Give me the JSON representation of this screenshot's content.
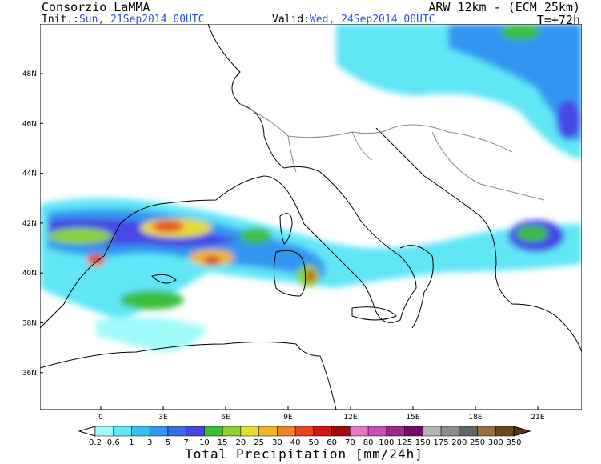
{
  "header": {
    "title": "Consorzio LaMMA",
    "model": "ARW 12km - (ECM 25km)",
    "init_label": "Init.:",
    "init": "Sun, 21Sep2014 00UTC",
    "valid_label": "Valid:",
    "valid": "Wed, 24Sep2014 00UTC",
    "lead": "T=+72h"
  },
  "map": {
    "lat_labels": [
      "48N",
      "46N",
      "44N",
      "42N",
      "40N",
      "38N",
      "36N"
    ],
    "lon_labels": [
      "0",
      "3E",
      "6E",
      "9E",
      "12E",
      "15E",
      "18E",
      "21E"
    ]
  },
  "legend": {
    "title": "Total Precipitation [mm/24h]",
    "labels": [
      "0.2",
      "0.6",
      "1",
      "3",
      "5",
      "7",
      "10",
      "15",
      "20",
      "25",
      "30",
      "40",
      "50",
      "60",
      "70",
      "80",
      "100",
      "125",
      "150",
      "175",
      "200",
      "250",
      "300",
      "350"
    ],
    "colors": [
      "#ffffff",
      "#a0fafa",
      "#60e6f5",
      "#38c0f0",
      "#3296f0",
      "#326ee6",
      "#4646e6",
      "#3cbe3c",
      "#8cd232",
      "#e6dc32",
      "#f0b428",
      "#f08228",
      "#e6461e",
      "#d21414",
      "#a00a0a",
      "#e678c8",
      "#c850b4",
      "#a0288c",
      "#780a6e",
      "#b4b4b4",
      "#8c8c8c",
      "#646464",
      "#9a6e3c",
      "#6e461e",
      "#5a3214"
    ]
  }
}
